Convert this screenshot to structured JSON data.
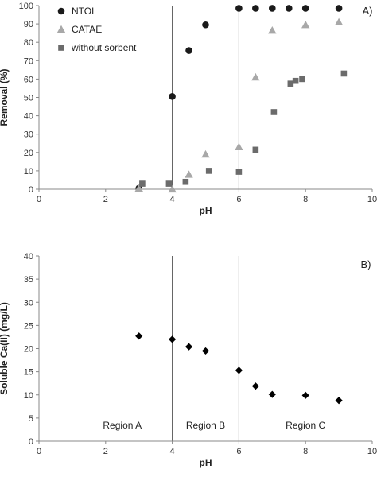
{
  "chart_data": [
    {
      "type": "scatter",
      "panel_label": "A)",
      "xlabel": "pH",
      "ylabel": "Removal (%)",
      "xlim": [
        0,
        10
      ],
      "ylim": [
        0,
        100
      ],
      "xticks": [
        "0",
        "2",
        "4",
        "6",
        "8",
        "10"
      ],
      "yticks": [
        "0",
        "10",
        "20",
        "30",
        "40",
        "50",
        "60",
        "70",
        "80",
        "90",
        "100"
      ],
      "vlines": [
        4,
        6
      ],
      "legend_position": "top-left",
      "series": [
        {
          "name": "NTOL",
          "marker": "circle",
          "color": "#1a1a1a",
          "x": [
            3.0,
            4.0,
            4.5,
            5.0,
            6.0,
            6.5,
            7.0,
            7.5,
            8.0,
            9.0
          ],
          "y": [
            0.5,
            50.5,
            75.5,
            89.5,
            98.5,
            98.5,
            98.5,
            98.5,
            98.5,
            98.5
          ]
        },
        {
          "name": "CATAE",
          "marker": "triangle",
          "color": "#a8a8a8",
          "x": [
            3.0,
            4.0,
            4.5,
            5.0,
            6.0,
            6.5,
            7.0,
            8.0,
            9.0
          ],
          "y": [
            0.5,
            0.0,
            8.0,
            19.0,
            23.0,
            61.0,
            86.5,
            89.5,
            91.0
          ]
        },
        {
          "name": "without sorbent",
          "marker": "square",
          "color": "#6b6b6b",
          "x": [
            3.1,
            3.9,
            4.4,
            5.1,
            6.0,
            6.5,
            7.05,
            7.55,
            7.7,
            7.9,
            9.15
          ],
          "y": [
            3.0,
            3.0,
            4.0,
            10.0,
            9.5,
            21.5,
            42.0,
            57.5,
            59.0,
            60.0,
            63.0
          ]
        }
      ]
    },
    {
      "type": "scatter",
      "panel_label": "B)",
      "xlabel": "pH",
      "ylabel": "Soluble Ca(II) (mg/L)",
      "xlim": [
        0,
        10
      ],
      "ylim": [
        0,
        40
      ],
      "xticks": [
        "0",
        "2",
        "4",
        "6",
        "8",
        "10"
      ],
      "yticks": [
        "0",
        "5",
        "10",
        "15",
        "20",
        "25",
        "30",
        "35",
        "40"
      ],
      "vlines": [
        4,
        6
      ],
      "regions": [
        {
          "label": "Region A",
          "x": 2.5
        },
        {
          "label": "Region B",
          "x": 5.0
        },
        {
          "label": "Region C",
          "x": 8.0
        }
      ],
      "series": [
        {
          "marker": "diamond",
          "color": "#000000",
          "x": [
            3.0,
            4.0,
            4.5,
            5.0,
            6.0,
            6.5,
            7.0,
            8.0,
            9.0
          ],
          "y": [
            22.7,
            22.0,
            20.4,
            19.5,
            15.3,
            11.9,
            10.1,
            9.9,
            8.8
          ]
        }
      ]
    }
  ]
}
